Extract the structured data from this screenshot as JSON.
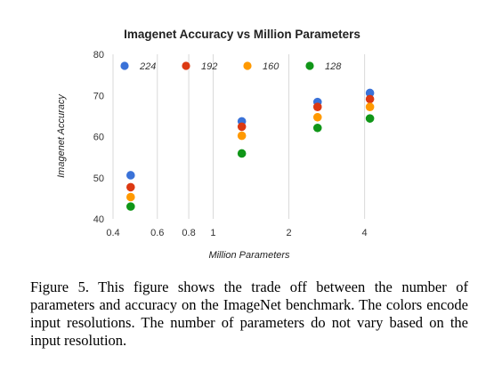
{
  "chart_data": {
    "type": "scatter",
    "title": "Imagenet Accuracy vs Million Parameters",
    "xlabel": "Million Parameters",
    "ylabel": "Imagenet Accuracy",
    "x_scale": "log",
    "xlim": [
      0.4,
      4.8
    ],
    "ylim": [
      40,
      80
    ],
    "x_ticks": [
      0.4,
      0.6,
      0.8,
      1,
      2,
      4
    ],
    "x_tick_labels": [
      "0.4",
      "0.6",
      "0.8",
      "1",
      "2",
      "4"
    ],
    "y_ticks": [
      40,
      50,
      60,
      70,
      80
    ],
    "y_tick_labels": [
      "40",
      "50",
      "60",
      "70",
      "80"
    ],
    "grid": "vertical",
    "legend_placement": "top-inside",
    "series": [
      {
        "name": "224",
        "color": "#3a72d8",
        "x": [
          0.47,
          1.3,
          2.6,
          4.2
        ],
        "y": [
          50.6,
          63.7,
          68.4,
          70.6
        ]
      },
      {
        "name": "192",
        "color": "#dc3912",
        "x": [
          0.47,
          1.3,
          2.6,
          4.2
        ],
        "y": [
          47.7,
          62.4,
          67.2,
          69.1
        ]
      },
      {
        "name": "160",
        "color": "#ff9900",
        "x": [
          0.47,
          1.3,
          2.6,
          4.2
        ],
        "y": [
          45.3,
          60.2,
          64.7,
          67.2
        ]
      },
      {
        "name": "128",
        "color": "#109618",
        "x": [
          0.47,
          1.3,
          2.6,
          4.2
        ],
        "y": [
          43.0,
          55.9,
          62.1,
          64.4
        ]
      }
    ]
  },
  "caption": "Figure 5. This figure shows the trade off between the number of parameters and accuracy on the ImageNet benchmark. The colors encode input resolutions.  The number of parameters do not vary based on the input resolution."
}
